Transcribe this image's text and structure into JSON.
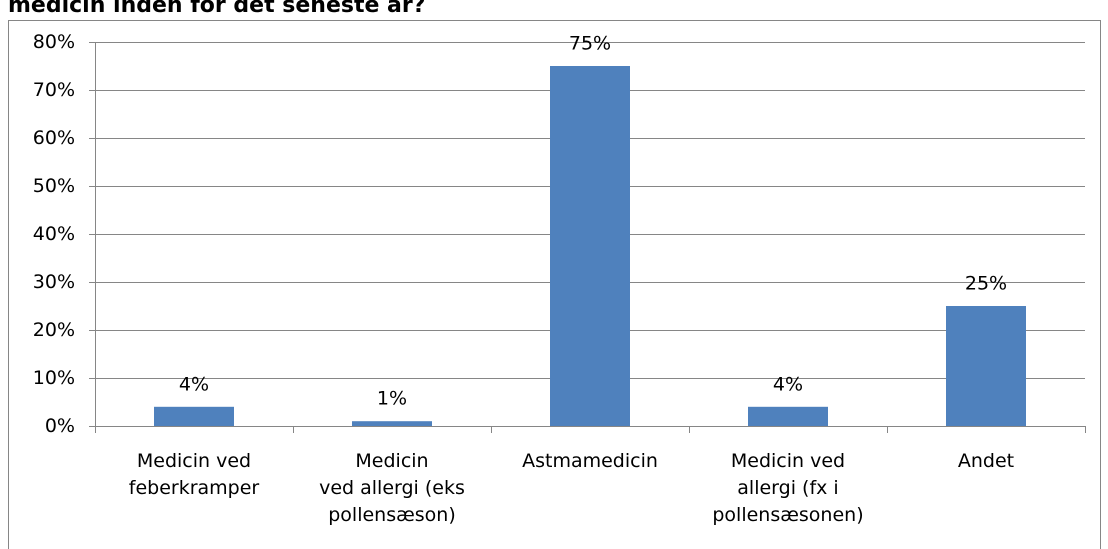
{
  "chart_data": {
    "type": "bar",
    "title": "medicin inden for det seneste år?",
    "categories": [
      "Medicin ved\nfeberkramper",
      "Medicin\nved allergi (eks\npollensæson)",
      "Astmamedicin",
      "Medicin ved\nallergi (fx i\npollensæsonen)",
      "Andet"
    ],
    "values": [
      4,
      1,
      75,
      4,
      25
    ],
    "value_labels": [
      "4%",
      "1%",
      "75%",
      "4%",
      "25%"
    ],
    "color": "#4f81bd",
    "ylim": [
      0,
      80
    ],
    "yticks": [
      {
        "value": 0,
        "label": "0%"
      },
      {
        "value": 10,
        "label": "10%"
      },
      {
        "value": 20,
        "label": "20%"
      },
      {
        "value": 30,
        "label": "30%"
      },
      {
        "value": 40,
        "label": "40%"
      },
      {
        "value": 50,
        "label": "50%"
      },
      {
        "value": 60,
        "label": "60%"
      },
      {
        "value": 70,
        "label": "70%"
      },
      {
        "value": 80,
        "label": "80%"
      }
    ],
    "grid": true
  }
}
